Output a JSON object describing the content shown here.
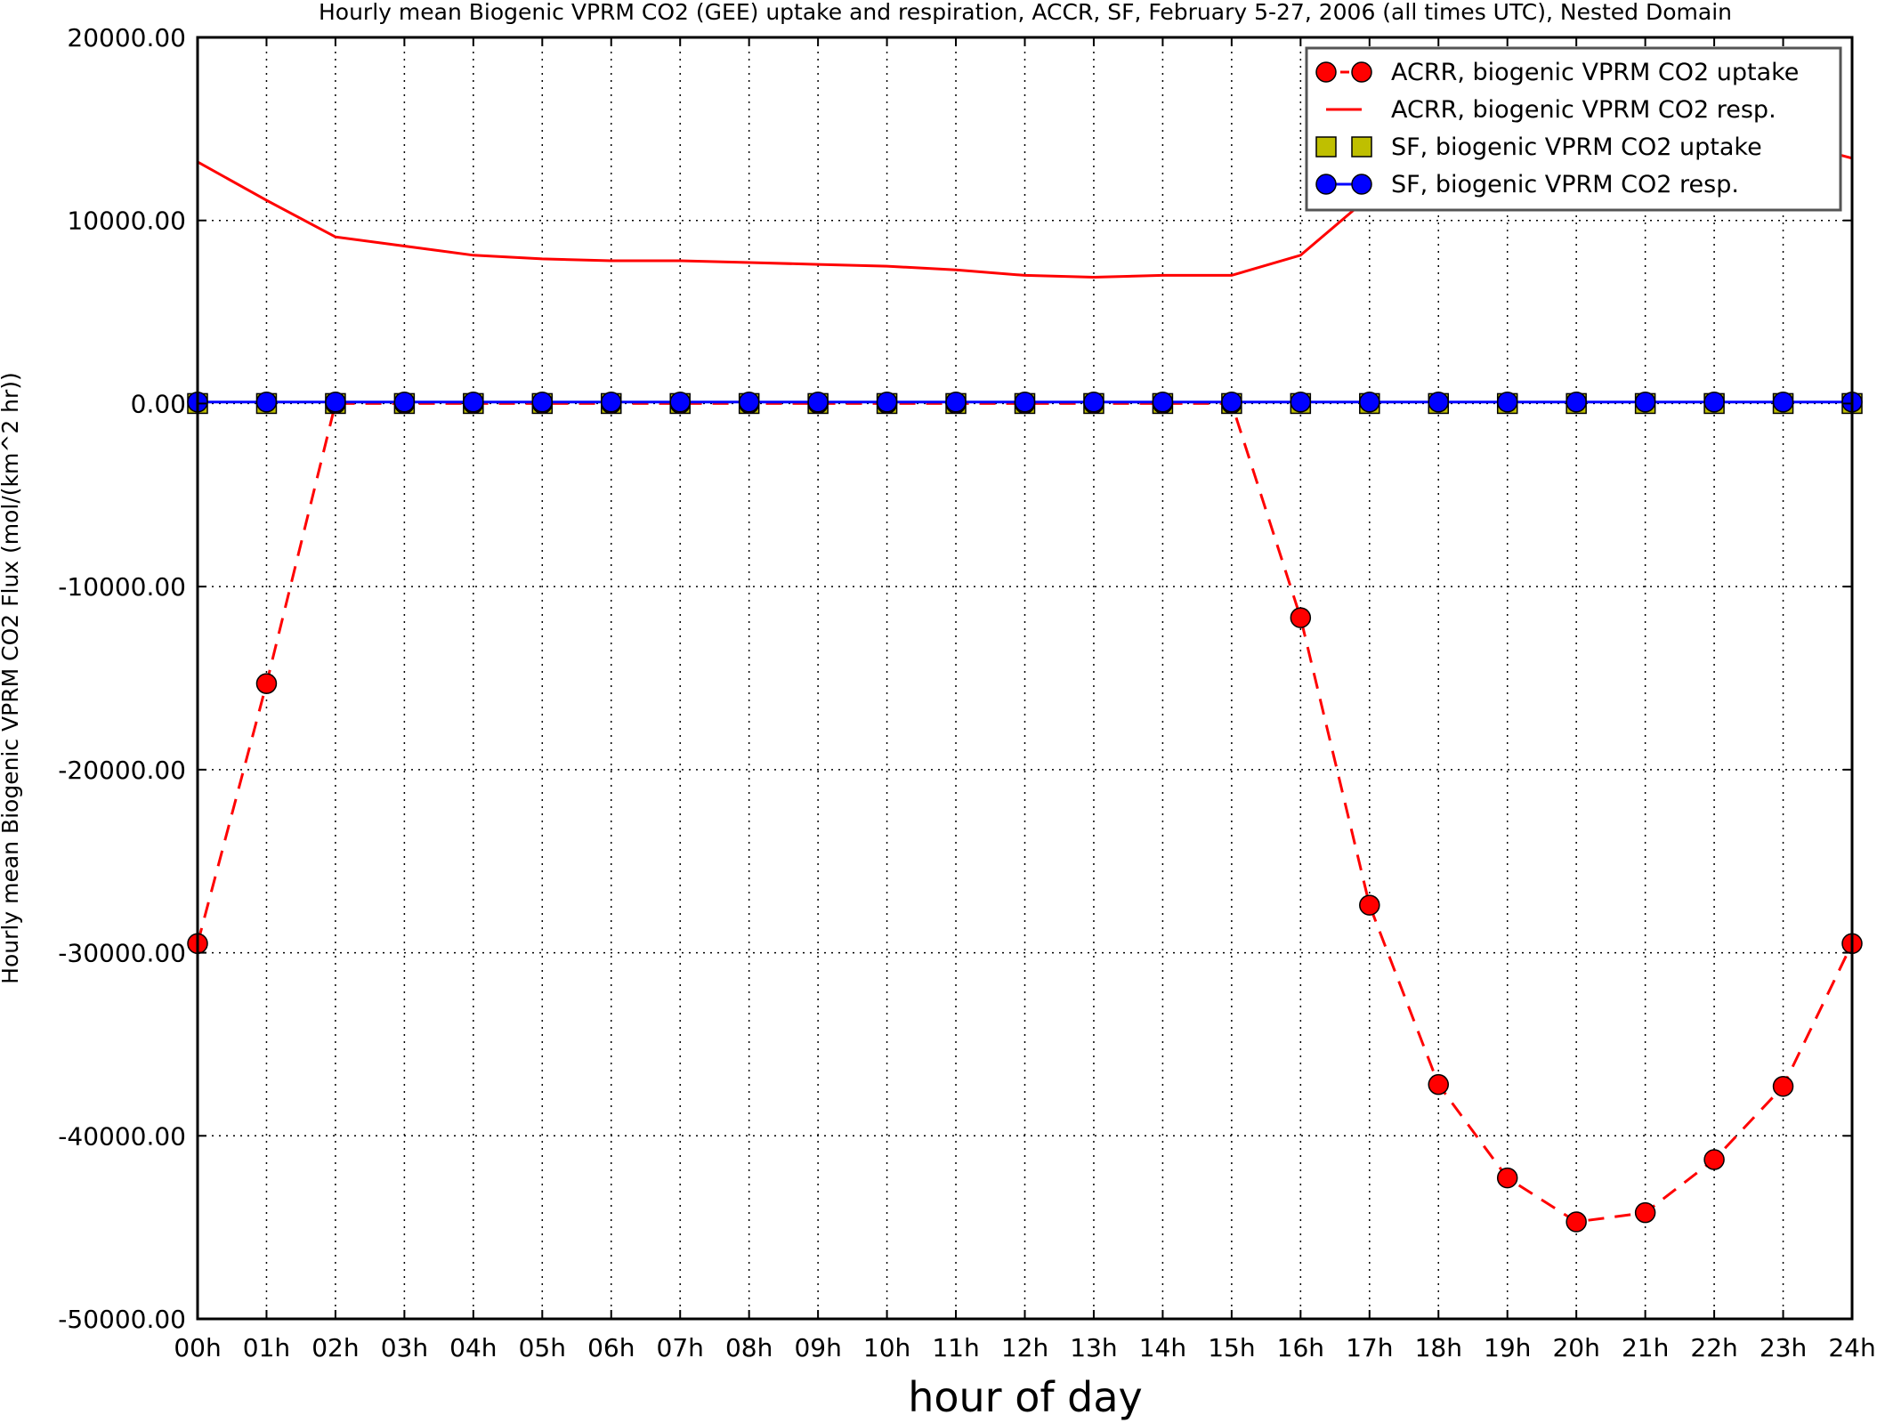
{
  "chart_data": {
    "type": "line",
    "title": "Hourly mean Biogenic VPRM CO2 (GEE) uptake and respiration, ACCR, SF, February 5-27, 2006 (all times UTC), Nested Domain",
    "xlabel": "hour of day",
    "ylabel": "Hourly mean Biogenic VPRM CO2 Flux (mol/(km^2 hr))",
    "x": [
      0,
      1,
      2,
      3,
      4,
      5,
      6,
      7,
      8,
      9,
      10,
      11,
      12,
      13,
      14,
      15,
      16,
      17,
      18,
      19,
      20,
      21,
      22,
      23,
      24
    ],
    "xticklabels": [
      "00h",
      "01h",
      "02h",
      "03h",
      "04h",
      "05h",
      "06h",
      "07h",
      "08h",
      "09h",
      "10h",
      "11h",
      "12h",
      "13h",
      "14h",
      "15h",
      "16h",
      "17h",
      "18h",
      "19h",
      "20h",
      "21h",
      "22h",
      "23h",
      "24h"
    ],
    "yticks": [
      20000,
      10000,
      0,
      -10000,
      -20000,
      -30000,
      -40000,
      -50000
    ],
    "yticklabels": [
      "20000.00",
      "10000.00",
      "0.00",
      "-10000.00",
      "-20000.00",
      "-30000.00",
      "-40000.00",
      "-50000.00"
    ],
    "xlim": [
      0,
      24
    ],
    "ylim": [
      -50000,
      20000
    ],
    "grid": true,
    "legend_position": "top-right",
    "series": [
      {
        "name": "ACRR, biogenic VPRM CO2 uptake",
        "color": "#ff0000",
        "style": "dashed",
        "marker": "circle",
        "values": [
          -29500,
          -15300,
          0,
          0,
          0,
          0,
          0,
          0,
          0,
          0,
          0,
          0,
          0,
          0,
          0,
          0,
          -11700,
          -27400,
          -37200,
          -42300,
          -44700,
          -44200,
          -41300,
          -37300,
          -29500
        ]
      },
      {
        "name": "ACRR, biogenic VPRM CO2 resp.",
        "color": "#ff0000",
        "style": "solid",
        "marker": "none",
        "values": [
          13200,
          11100,
          9100,
          8600,
          8100,
          7900,
          7800,
          7800,
          7700,
          7600,
          7500,
          7300,
          7000,
          6900,
          7000,
          7000,
          8100,
          11300,
          13600,
          14600,
          15200,
          15300,
          15000,
          14400,
          13400
        ]
      },
      {
        "name": "SF, biogenic VPRM CO2 uptake",
        "color": "#bfbf00",
        "style": "none",
        "marker": "square",
        "values": [
          0,
          0,
          0,
          0,
          0,
          0,
          0,
          0,
          0,
          0,
          0,
          0,
          0,
          0,
          0,
          0,
          0,
          0,
          0,
          0,
          0,
          0,
          0,
          0,
          0
        ]
      },
      {
        "name": "SF, biogenic VPRM CO2 resp.",
        "color": "#0000ff",
        "style": "solid",
        "marker": "circle",
        "values": [
          80,
          80,
          80,
          80,
          80,
          80,
          80,
          80,
          80,
          80,
          80,
          80,
          80,
          80,
          80,
          80,
          80,
          80,
          80,
          80,
          80,
          80,
          80,
          80,
          80
        ]
      }
    ]
  }
}
